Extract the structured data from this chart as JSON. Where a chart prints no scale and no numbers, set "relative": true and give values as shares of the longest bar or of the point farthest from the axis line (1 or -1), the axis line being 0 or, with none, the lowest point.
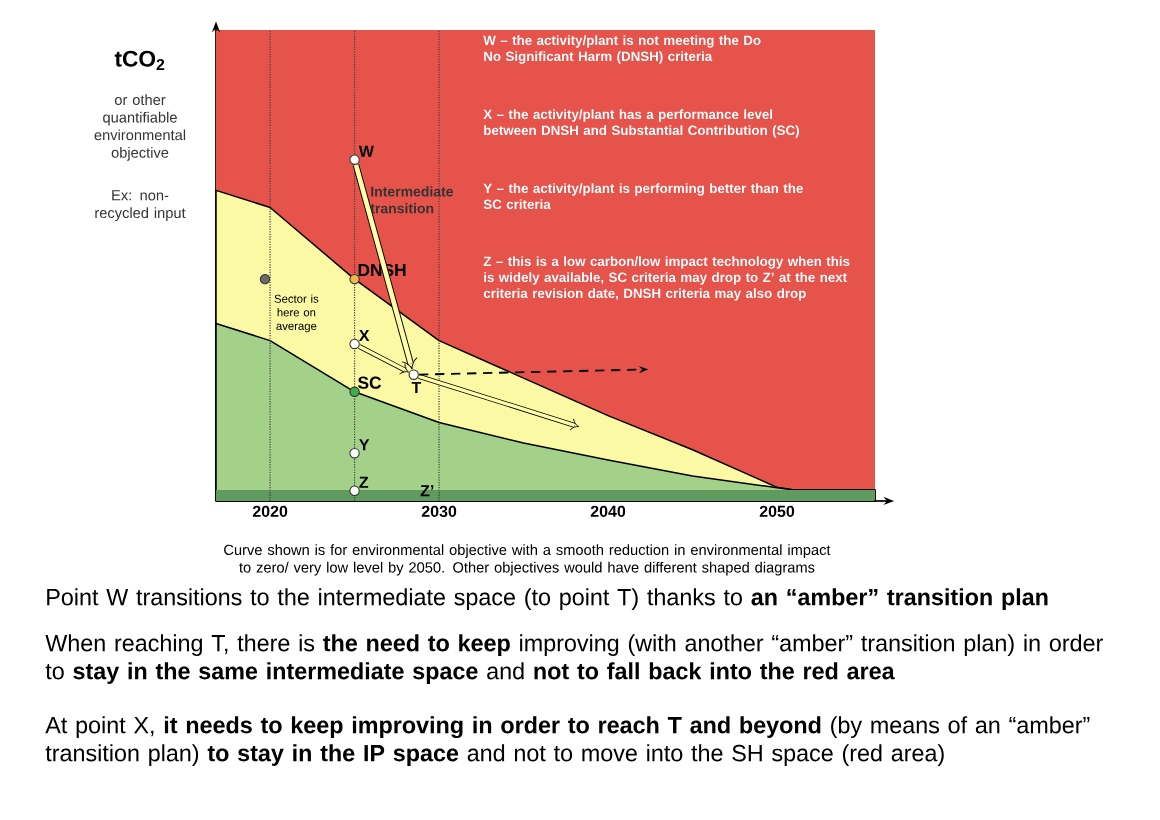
{
  "chart_data": {
    "type": "area",
    "relative": true,
    "ylabel": "tCO$_{2}$",
    "xlim": [
      2016.8,
      2055.8
    ],
    "xticks": [
      2020,
      2030,
      2040,
      2050
    ],
    "series": [
      {
        "name": "DNSH",
        "color": "#fbf9a4",
        "x": [
          2016.8,
          2020,
          2025,
          2030,
          2035,
          2040,
          2045,
          2050,
          2051,
          2055.8
        ],
        "values": [
          0.91,
          0.86,
          0.65,
          0.47,
          0.36,
          0.25,
          0.15,
          0.04,
          0.032,
          0.032
        ]
      },
      {
        "name": "SC",
        "color": "#a3d18a",
        "x": [
          2016.8,
          2020,
          2025,
          2030,
          2035,
          2040,
          2045,
          2050,
          2051,
          2055.8
        ],
        "values": [
          0.52,
          0.47,
          0.32,
          0.23,
          0.17,
          0.12,
          0.073,
          0.039,
          0.032,
          0.032
        ]
      },
      {
        "type": "scatter",
        "marker": "circle",
        "x": [
          2025,
          2025,
          2025,
          2025,
          2028.5
        ],
        "values": [
          1,
          0.46,
          0.14,
          0.03,
          0.37
        ],
        "colors": [
          "#ffffff",
          "#ffffff",
          "#ffffff",
          "#ffffff",
          "#ffffff"
        ]
      },
      {
        "type": "scatter",
        "marker": "circle",
        "x": [
          2025,
          2025,
          2019.7
        ],
        "values": [
          0.65,
          0.32,
          0.65
        ],
        "colors": [
          "#f2b84b",
          "#3cae50",
          "#6b6b6b"
        ]
      }
    ],
    "bands": [
      {
        "axis": "y",
        "from": 0,
        "to": 1.38,
        "color": "#e5534b"
      },
      {
        "axis": "y",
        "from": 0,
        "to": 0.032,
        "color": "#5f9a5f"
      }
    ],
    "ref_lines": [
      {
        "axis": "x",
        "value": 2020,
        "line_style": "dotted"
      },
      {
        "axis": "x",
        "value": 2025,
        "line_style": "dotted"
      },
      {
        "axis": "x",
        "value": 2030,
        "line_style": "dotted",
        "label": "Z’"
      }
    ],
    "annotations": [
      "W – the activity/plant is not meeting the Do No Significant Harm (DNSH) criteria",
      "X – the activity/plant has a performance level between DNSH and Substantial Contribution (SC)",
      "Y – the activity/plant is performing better than the SC criteria",
      "Z – this is a low carbon/low impact technology when this is widely available, SC criteria may drop to Z’ at the next criteria revision date, DNSH criteria may also drop",
      "Intermediate transition",
      {
        "text": "Sector is here on average",
        "x": 2019.7,
        "y": 0.65
      },
      {
        "text": "W",
        "x": 2025,
        "y": 1
      },
      {
        "text": "X",
        "x": 2025,
        "y": 0.46
      },
      {
        "text": "Y",
        "x": 2025,
        "y": 0.14
      },
      {
        "text": "Z",
        "x": 2025,
        "y": 0.03
      },
      {
        "text": "T",
        "x": 2028.5,
        "y": 0.37
      },
      "or other quantifiable environmental objective",
      "Ex: non-recycled input",
      "Curve shown is for environmental objective with a smooth reduction in environmental impact to zero/ very low level by 2050. Other objectives would have different shaped diagrams",
      "Point W transitions to the intermediate space (to point T) thanks to **an “amber” transition plan**",
      "When reaching T, there is **the need to keep** improving (with another “amber” transition plan) in order to **stay in the same intermediate space** and **not to fall back into the red area**",
      "At point X, **it needs to keep improving in order to reach T and beyond** (by means of an “amber” transition plan) **to stay in the IP space** and not to move into the SH space (red area)"
    ]
  }
}
